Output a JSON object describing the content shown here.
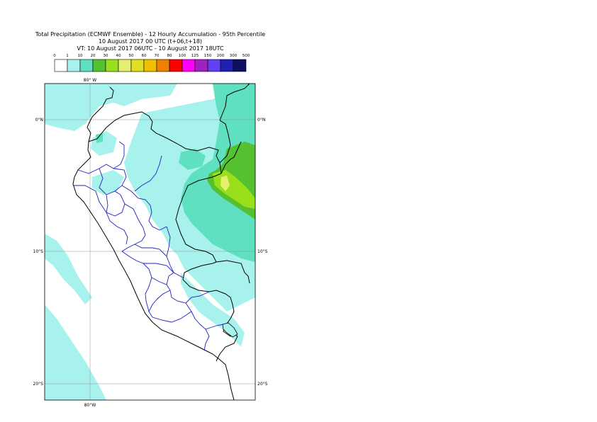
{
  "title_line1": "Total Precipitation (ECMWF Ensemble) - 12 Hourly Accumulation - 95th Percentile",
  "title_line2": "10 August 2017 00 UTC (t+06,t+18)",
  "title_line3": "VT: 10 August 2017 06UTC - 10 August 2017 18UTC",
  "legend": {
    "ticks": [
      "0",
      "1",
      "10",
      "20",
      "30",
      "40",
      "50",
      "60",
      "70",
      "80",
      "100",
      "125",
      "150",
      "200",
      "300",
      "500"
    ],
    "colors": [
      "#ffffff",
      "#a8f2ee",
      "#5fe0c0",
      "#55c030",
      "#99e01a",
      "#e6f070",
      "#e0e020",
      "#f0c000",
      "#f08000",
      "#ff0000",
      "#ff00ff",
      "#a020c0",
      "#6040f0",
      "#2020b0",
      "#101060"
    ]
  },
  "axes": {
    "lon_label_top": "80° W",
    "lon_label_bottom": "80°W",
    "lat_labels_left": [
      "0°N",
      "10°S",
      "20°S"
    ],
    "lat_labels_right": [
      "0°N",
      "10°S",
      "20°S"
    ]
  }
}
